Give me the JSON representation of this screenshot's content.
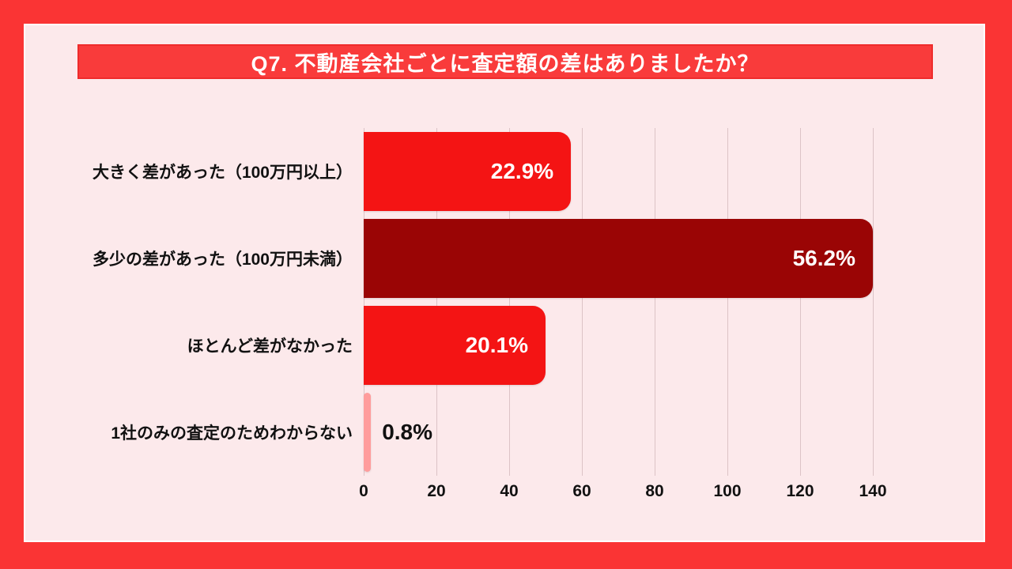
{
  "colors": {
    "page_bg": "#fa3434",
    "panel_bg": "#fce9eb",
    "panel_border": "#ffffff",
    "banner_bg": "#f93b3b",
    "banner_border": "#ef2b2b",
    "grid_line": "#dcc3c6",
    "text_dark": "#111111",
    "value_text_inside": "#ffffff"
  },
  "header": {
    "title": "Q7. 不動産会社ごとに査定額の差はありましたか？"
  },
  "chart_data": {
    "type": "bar",
    "orientation": "horizontal",
    "title": "Q7. 不動産会社ごとに査定額の差はありましたか？",
    "categories": [
      "大きく差があった（100万円以上）",
      "多少の差があった（100万円未満）",
      "ほとんど差がなかった",
      "1社のみの査定のためわからない"
    ],
    "values": [
      57,
      140,
      50,
      2
    ],
    "value_labels": [
      "22.9%",
      "56.2%",
      "20.1%",
      "0.8%"
    ],
    "bar_colors": [
      "#f41414",
      "#9a0505",
      "#f41414",
      "#ff9c9c"
    ],
    "x_ticks": [
      0,
      20,
      40,
      60,
      80,
      100,
      120,
      140
    ],
    "xlim": [
      0,
      148
    ],
    "grid": true,
    "legend": false,
    "xlabel": "",
    "ylabel": ""
  }
}
